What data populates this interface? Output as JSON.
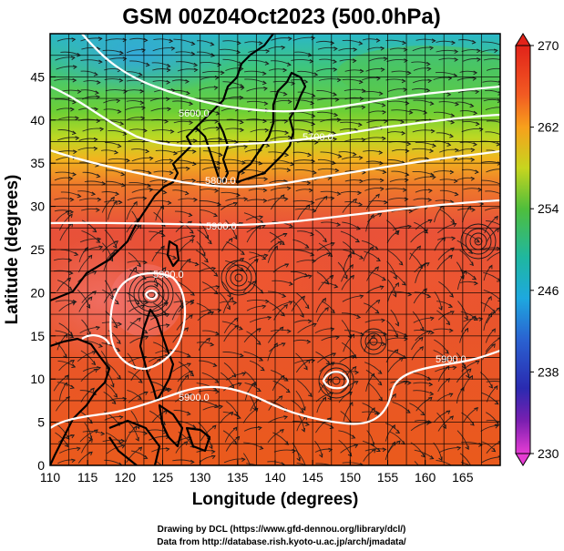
{
  "title": "GSM 00Z04Oct2023 (500.0hPa)",
  "xlabel": "Longitude (degrees)",
  "ylabel": "Latitude  (degrees)",
  "x_ticks": [
    "110",
    "115",
    "120",
    "125",
    "130",
    "135",
    "140",
    "145",
    "150",
    "155",
    "160",
    "165"
  ],
  "y_ticks": [
    "0",
    "5",
    "10",
    "15",
    "20",
    "25",
    "30",
    "35",
    "40",
    "45"
  ],
  "colorbar": {
    "ticks": [
      "270",
      "262",
      "254",
      "246",
      "238",
      "230"
    ],
    "colors": [
      "#e2231a",
      "#f26b21",
      "#f7a31c",
      "#c9d61f",
      "#59c23b",
      "#1fb88e",
      "#17b0d9",
      "#2a6fd6",
      "#2b2fb5",
      "#4a1fa0",
      "#b21fb8",
      "#e83ccf"
    ]
  },
  "contour_labels": [
    "5600.0",
    "5700.0",
    "5800.0",
    "5900.0",
    "5900.0",
    "5900.0",
    "5900.0"
  ],
  "credits": {
    "line1": "Drawing by DCL (https://www.gfd-dennou.org/library/dcl/)",
    "line2": "Data from http://database.rish.kyoto-u.ac.jp/arch/jmadata/"
  },
  "chart_data": {
    "type": "heatmap",
    "title": "GSM 00Z04Oct2023 (500.0hPa)",
    "xlabel": "Longitude (degrees)",
    "ylabel": "Latitude  (degrees)",
    "xlim": [
      110,
      170
    ],
    "ylim": [
      0,
      50
    ],
    "x_ticks": [
      110,
      115,
      120,
      125,
      130,
      135,
      140,
      145,
      150,
      155,
      160,
      165
    ],
    "y_ticks": [
      0,
      5,
      10,
      15,
      20,
      25,
      30,
      35,
      40,
      45
    ],
    "colorbar": {
      "min": 230,
      "max": 270,
      "ticks": [
        270,
        262,
        254,
        246,
        238,
        230
      ]
    },
    "contours": [
      {
        "level": 5600.0,
        "label": "5600.0"
      },
      {
        "level": 5700.0,
        "label": "5700.0"
      },
      {
        "level": 5800.0,
        "label": "5800.0"
      },
      {
        "level": 5900.0,
        "label": "5900.0"
      }
    ],
    "overlays": [
      "temperature shading",
      "wind streamlines",
      "geopotential height contours",
      "coastlines",
      "grid"
    ]
  }
}
